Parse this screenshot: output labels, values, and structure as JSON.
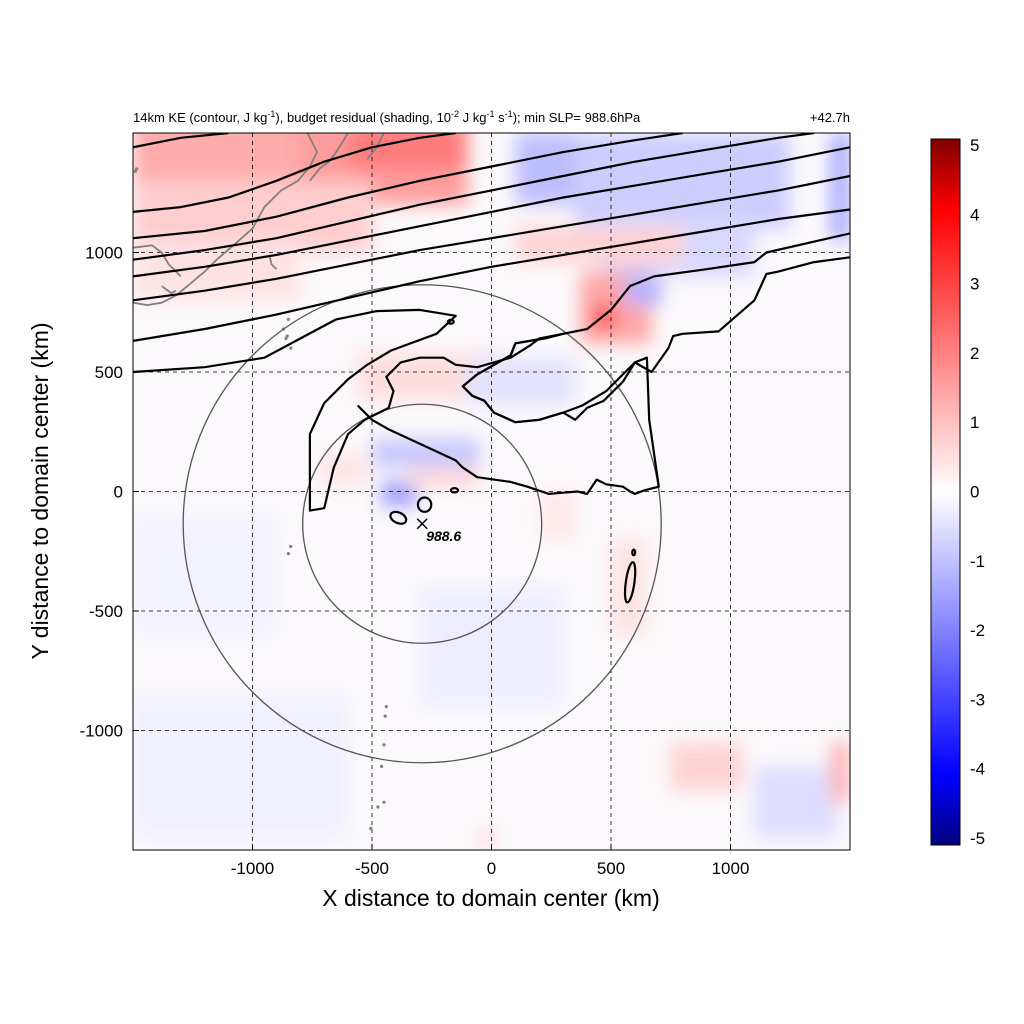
{
  "chart_data": {
    "type": "heatmap",
    "title_parts": {
      "a": "14km KE (contour, J kg",
      "a_sup": "-1",
      "b": "), budget residual (shading, 10",
      "b_sup": "-2",
      "c": " J kg",
      "c_sup": "-1",
      "d": " s",
      "d_sup": "-1",
      "e": "); min SLP= 988.6hPa"
    },
    "time_label": "+42.7h",
    "xlabel": "X distance to domain center (km)",
    "ylabel": "Y distance to domain center (km)",
    "xlim": [
      -1500,
      1500
    ],
    "ylim": [
      -1500,
      1500
    ],
    "xticks": [
      -1000,
      -500,
      0,
      500,
      1000
    ],
    "yticks": [
      -1000,
      -500,
      0,
      500,
      1000
    ],
    "grid": true,
    "colorbar": {
      "range": [
        -5,
        5
      ],
      "ticks": [
        5,
        4,
        3,
        2,
        1,
        0,
        -1,
        -2,
        -3,
        -4,
        -5
      ],
      "colors": [
        "#00007f",
        "#0000ff",
        "#ffffff",
        "#ff0000",
        "#7f0000"
      ]
    },
    "storm_center": {
      "x": -290,
      "y": -135,
      "label": "988.6"
    },
    "circles": [
      {
        "cx": -290,
        "cy": -135,
        "r": 500
      },
      {
        "cx": -290,
        "cy": -135,
        "r": 1000
      }
    ],
    "ke_contours": [
      [
        [
          -1500,
          1440
        ],
        [
          -1300,
          1480
        ],
        [
          -1100,
          1500
        ]
      ],
      [
        [
          -1500,
          1170
        ],
        [
          -1300,
          1190
        ],
        [
          -1100,
          1230
        ],
        [
          -900,
          1300
        ],
        [
          -700,
          1380
        ],
        [
          -500,
          1440
        ],
        [
          -300,
          1480
        ],
        [
          -150,
          1500
        ]
      ],
      [
        [
          -1500,
          1060
        ],
        [
          -1200,
          1090
        ],
        [
          -900,
          1150
        ],
        [
          -600,
          1230
        ],
        [
          -300,
          1300
        ],
        [
          0,
          1360
        ],
        [
          300,
          1420
        ],
        [
          600,
          1470
        ],
        [
          800,
          1500
        ]
      ],
      [
        [
          -1500,
          970
        ],
        [
          -1200,
          1010
        ],
        [
          -900,
          1060
        ],
        [
          -600,
          1130
        ],
        [
          -300,
          1200
        ],
        [
          0,
          1260
        ],
        [
          300,
          1320
        ],
        [
          600,
          1380
        ],
        [
          900,
          1430
        ],
        [
          1200,
          1480
        ],
        [
          1350,
          1500
        ]
      ],
      [
        [
          -1500,
          900
        ],
        [
          -1200,
          940
        ],
        [
          -900,
          990
        ],
        [
          -600,
          1050
        ],
        [
          -300,
          1110
        ],
        [
          0,
          1170
        ],
        [
          300,
          1230
        ],
        [
          600,
          1280
        ],
        [
          900,
          1330
        ],
        [
          1200,
          1380
        ],
        [
          1500,
          1440
        ]
      ],
      [
        [
          -1500,
          800
        ],
        [
          -1200,
          840
        ],
        [
          -900,
          890
        ],
        [
          -600,
          950
        ],
        [
          -300,
          1010
        ],
        [
          0,
          1060
        ],
        [
          300,
          1110
        ],
        [
          600,
          1160
        ],
        [
          900,
          1210
        ],
        [
          1200,
          1260
        ],
        [
          1500,
          1320
        ]
      ],
      [
        [
          -1500,
          630
        ],
        [
          -1200,
          680
        ],
        [
          -900,
          740
        ],
        [
          -600,
          810
        ],
        [
          -300,
          880
        ],
        [
          0,
          940
        ],
        [
          300,
          990
        ],
        [
          600,
          1040
        ],
        [
          900,
          1090
        ],
        [
          1200,
          1140
        ],
        [
          1500,
          1180
        ]
      ],
      [
        [
          -1500,
          500
        ],
        [
          -1200,
          520
        ],
        [
          -950,
          560
        ],
        [
          -800,
          640
        ],
        [
          -650,
          720
        ],
        [
          -480,
          755
        ],
        [
          -300,
          760
        ],
        [
          -150,
          735
        ],
        [
          -230,
          660
        ],
        [
          -420,
          590
        ],
        [
          -520,
          530
        ],
        [
          -600,
          470
        ],
        [
          -700,
          370
        ],
        [
          -760,
          240
        ],
        [
          -760,
          -80
        ],
        [
          -700,
          -70
        ],
        [
          -660,
          100
        ],
        [
          -600,
          240
        ],
        [
          -530,
          300
        ],
        [
          -430,
          350
        ],
        [
          -410,
          420
        ],
        [
          -440,
          480
        ],
        [
          -380,
          540
        ],
        [
          -300,
          560
        ],
        [
          -200,
          560
        ],
        [
          -150,
          530
        ],
        [
          -60,
          520
        ],
        [
          80,
          560
        ],
        [
          160,
          610
        ],
        [
          200,
          640
        ],
        [
          300,
          660
        ],
        [
          220,
          640
        ],
        [
          100,
          620
        ],
        [
          80,
          570
        ],
        [
          -60,
          490
        ],
        [
          -120,
          440
        ],
        [
          -80,
          400
        ],
        [
          -30,
          380
        ],
        [
          10,
          330
        ],
        [
          100,
          290
        ],
        [
          200,
          300
        ],
        [
          300,
          330
        ],
        [
          350,
          300
        ],
        [
          400,
          350
        ],
        [
          470,
          380
        ],
        [
          550,
          460
        ],
        [
          600,
          540
        ],
        [
          670,
          500
        ],
        [
          740,
          600
        ],
        [
          760,
          650
        ],
        [
          800,
          660
        ],
        [
          950,
          670
        ],
        [
          1100,
          800
        ],
        [
          1150,
          910
        ],
        [
          1200,
          920
        ],
        [
          1350,
          960
        ],
        [
          1500,
          980
        ]
      ],
      [
        [
          -560,
          360
        ],
        [
          -500,
          300
        ],
        [
          -430,
          260
        ],
        [
          -300,
          200
        ],
        [
          -150,
          130
        ],
        [
          -120,
          100
        ],
        [
          -60,
          60
        ],
        [
          80,
          40
        ],
        [
          150,
          20
        ],
        [
          240,
          -10
        ],
        [
          300,
          -5
        ],
        [
          360,
          0
        ],
        [
          400,
          -10
        ],
        [
          440,
          50
        ],
        [
          480,
          30
        ],
        [
          550,
          20
        ],
        [
          580,
          0
        ],
        [
          600,
          -10
        ],
        [
          640,
          5
        ],
        [
          700,
          20
        ],
        [
          660,
          300
        ],
        [
          650,
          560
        ],
        [
          600,
          540
        ],
        [
          480,
          420
        ],
        [
          380,
          360
        ],
        [
          300,
          330
        ],
        [
          200,
          300
        ],
        [
          100,
          290
        ],
        [
          10,
          330
        ],
        [
          -30,
          380
        ],
        [
          -80,
          400
        ],
        [
          -120,
          440
        ],
        [
          -60,
          490
        ],
        [
          80,
          570
        ],
        [
          100,
          620
        ],
        [
          220,
          640
        ],
        [
          300,
          660
        ],
        [
          400,
          680
        ],
        [
          500,
          760
        ],
        [
          580,
          860
        ],
        [
          680,
          900
        ],
        [
          900,
          930
        ],
        [
          1100,
          960
        ],
        [
          1150,
          1000
        ],
        [
          1500,
          1080
        ]
      ]
    ],
    "ke_loops": [
      {
        "cx": -390,
        "cy": -110,
        "rx": 35,
        "ry": 22,
        "rot": 25
      },
      {
        "cx": -280,
        "cy": -55,
        "rx": 28,
        "ry": 30,
        "rot": 0
      },
      {
        "cx": -155,
        "cy": 5,
        "rx": 15,
        "ry": 9,
        "rot": 0
      },
      {
        "cx": 580,
        "cy": -380,
        "rx": 18,
        "ry": 85,
        "rot": 8
      },
      {
        "cx": 595,
        "cy": -255,
        "rx": 6,
        "ry": 12,
        "rot": 0
      },
      {
        "cx": -170,
        "cy": 710,
        "rx": 12,
        "ry": 8,
        "rot": 0
      }
    ],
    "residual_patches": [
      {
        "x": -1500,
        "y": 1300,
        "w": 800,
        "h": 450,
        "v": 1.5
      },
      {
        "x": -800,
        "y": 1200,
        "w": 700,
        "h": 350,
        "v": 1.8
      },
      {
        "x": -600,
        "y": 1350,
        "w": 500,
        "h": 200,
        "v": 2.4
      },
      {
        "x": -1500,
        "y": 1000,
        "w": 1000,
        "h": 300,
        "v": 0.9
      },
      {
        "x": -1500,
        "y": 800,
        "w": 700,
        "h": 250,
        "v": 0.5
      },
      {
        "x": 100,
        "y": 1200,
        "w": 700,
        "h": 300,
        "v": -1.2
      },
      {
        "x": 350,
        "y": 1100,
        "w": 900,
        "h": 400,
        "v": -0.9
      },
      {
        "x": 450,
        "y": 900,
        "w": 650,
        "h": 250,
        "v": -0.7
      },
      {
        "x": 370,
        "y": 620,
        "w": 300,
        "h": 300,
        "v": 1.6
      },
      {
        "x": 420,
        "y": 680,
        "w": 100,
        "h": 100,
        "v": 3.2
      },
      {
        "x": 560,
        "y": 780,
        "w": 150,
        "h": 120,
        "v": -1.4
      },
      {
        "x": 100,
        "y": 960,
        "w": 700,
        "h": 150,
        "v": 0.8
      },
      {
        "x": -560,
        "y": 380,
        "w": 600,
        "h": 200,
        "v": 0.6
      },
      {
        "x": -100,
        "y": 360,
        "w": 450,
        "h": 200,
        "v": -0.5
      },
      {
        "x": -500,
        "y": 100,
        "w": 450,
        "h": 120,
        "v": -1.0
      },
      {
        "x": -460,
        "y": -60,
        "w": 150,
        "h": 100,
        "v": -1.8
      },
      {
        "x": -350,
        "y": 20,
        "w": 300,
        "h": 80,
        "v": 0.7
      },
      {
        "x": -720,
        "y": 30,
        "w": 200,
        "h": 120,
        "v": 0.5
      },
      {
        "x": 200,
        "y": -200,
        "w": 150,
        "h": 200,
        "v": 0.4
      },
      {
        "x": 500,
        "y": -600,
        "w": 150,
        "h": 400,
        "v": 0.5
      },
      {
        "x": 750,
        "y": -1250,
        "w": 300,
        "h": 200,
        "v": 0.8
      },
      {
        "x": 1100,
        "y": -1450,
        "w": 350,
        "h": 300,
        "v": -0.6
      },
      {
        "x": 1420,
        "y": 1050,
        "w": 80,
        "h": 450,
        "v": -1.6
      },
      {
        "x": 1420,
        "y": -1300,
        "w": 80,
        "h": 250,
        "v": 1.4
      },
      {
        "x": -1500,
        "y": -1450,
        "w": 900,
        "h": 600,
        "v": -0.25
      },
      {
        "x": -1500,
        "y": -600,
        "w": 600,
        "h": 500,
        "v": -0.2
      },
      {
        "x": -300,
        "y": -900,
        "w": 600,
        "h": 500,
        "v": -0.3
      },
      {
        "x": -50,
        "y": -1470,
        "w": 60,
        "h": 40,
        "v": 1.2
      }
    ],
    "coastlines": [
      [
        [
          -770,
          1500
        ],
        [
          -730,
          1420
        ],
        [
          -760,
          1360
        ],
        [
          -810,
          1300
        ],
        [
          -880,
          1260
        ],
        [
          -950,
          1190
        ],
        [
          -1000,
          1100
        ],
        [
          -1080,
          1030
        ],
        [
          -1150,
          970
        ],
        [
          -1200,
          920
        ],
        [
          -1260,
          870
        ],
        [
          -1320,
          820
        ],
        [
          -1380,
          790
        ],
        [
          -1440,
          780
        ],
        [
          -1500,
          790
        ]
      ],
      [
        [
          -600,
          1500
        ],
        [
          -650,
          1420
        ],
        [
          -680,
          1380
        ],
        [
          -720,
          1350
        ],
        [
          -760,
          1300
        ]
      ],
      [
        [
          -1500,
          1020
        ],
        [
          -1420,
          1030
        ],
        [
          -1380,
          1000
        ],
        [
          -1350,
          950
        ],
        [
          -1300,
          900
        ]
      ],
      [
        [
          -930,
          990
        ],
        [
          -920,
          950
        ],
        [
          -900,
          930
        ]
      ],
      [
        [
          -1380,
          860
        ],
        [
          -1340,
          830
        ],
        [
          -1320,
          840
        ]
      ],
      [
        [
          -450,
          1500
        ],
        [
          -480,
          1440
        ],
        [
          -520,
          1390
        ]
      ]
    ],
    "island_dots": [
      [
        -850,
        720
      ],
      [
        -870,
        680
      ],
      [
        -855,
        650
      ],
      [
        -860,
        640
      ],
      [
        -840,
        600
      ],
      [
        -840,
        -230
      ],
      [
        -850,
        -260
      ],
      [
        -440,
        -900
      ],
      [
        -445,
        -940
      ],
      [
        -450,
        -1060
      ],
      [
        -460,
        -1150
      ],
      [
        -450,
        -1300
      ],
      [
        -475,
        -1320
      ],
      [
        -505,
        -1410
      ],
      [
        -1490,
        1340
      ],
      [
        -1485,
        1350
      ]
    ]
  }
}
